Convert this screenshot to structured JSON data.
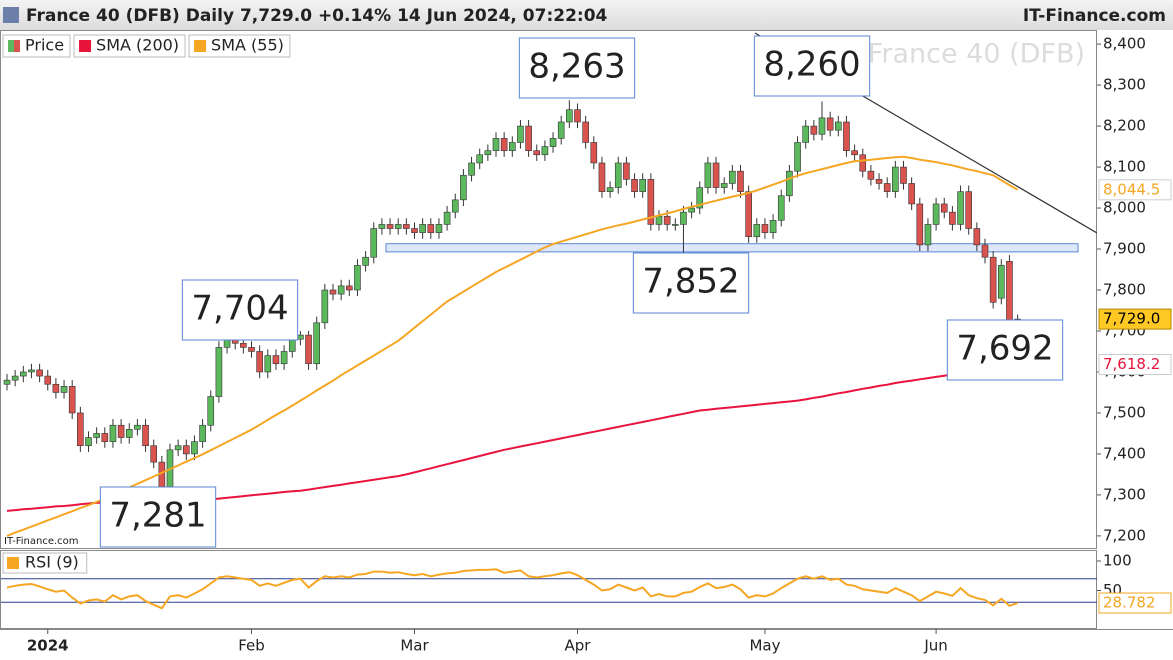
{
  "header": {
    "title": "France 40 (DFB) Daily 7,729.0 +0.14% 14 Jun 2024, 07:22:04",
    "brand": "IT-Finance.com"
  },
  "chart_data": [
    {
      "type": "candlestick",
      "watermark": "France 40 (DFB)",
      "source": "IT-Finance.com",
      "categories": [
        null,
        null,
        null,
        null,
        null,
        "2024",
        null,
        null,
        null,
        null,
        null,
        null,
        null,
        null,
        null,
        null,
        null,
        null,
        null,
        null,
        null,
        null,
        null,
        null,
        null,
        null,
        null,
        null,
        null,
        null,
        "Feb",
        null,
        null,
        null,
        null,
        null,
        null,
        null,
        null,
        null,
        null,
        null,
        null,
        null,
        null,
        null,
        null,
        null,
        null,
        null,
        "Mar",
        null,
        null,
        null,
        null,
        null,
        null,
        null,
        null,
        null,
        null,
        null,
        null,
        null,
        null,
        null,
        null,
        null,
        null,
        null,
        "Apr",
        null,
        null,
        null,
        null,
        null,
        null,
        null,
        null,
        null,
        null,
        null,
        null,
        null,
        null,
        null,
        null,
        null,
        null,
        null,
        null,
        null,
        null,
        "May",
        null,
        null,
        null,
        null,
        null,
        null,
        null,
        null,
        null,
        null,
        null,
        null,
        null,
        null,
        null,
        null,
        null,
        null,
        null,
        null,
        "Jun",
        null,
        null,
        null,
        null,
        null,
        null,
        null,
        null,
        null,
        null
      ],
      "series": [
        {
          "name": "Price",
          "up_color": "#5cb85c",
          "down_color": "#d9534f",
          "end_label": "7,729.0",
          "open": [
            7570,
            7580,
            7590,
            7600,
            7605,
            7590,
            7570,
            7550,
            7565,
            7500,
            7420,
            7440,
            7450,
            7430,
            7470,
            7440,
            7460,
            7470,
            7420,
            7380,
            7320,
            7410,
            7420,
            7400,
            7430,
            7470,
            7540,
            7660,
            7680,
            7670,
            7660,
            7650,
            7600,
            7640,
            7620,
            7650,
            7680,
            7690,
            7620,
            7720,
            7800,
            7790,
            7810,
            7800,
            7860,
            7880,
            7950,
            7960,
            7950,
            7960,
            7950,
            7940,
            7960,
            7940,
            7960,
            7990,
            8020,
            8080,
            8110,
            8130,
            8140,
            8170,
            8140,
            8160,
            8200,
            8140,
            8130,
            8150,
            8170,
            8210,
            8240,
            8210,
            8160,
            8110,
            8040,
            8050,
            8110,
            8070,
            8040,
            8070,
            7960,
            7980,
            7960,
            7960,
            7990,
            8000,
            8050,
            8110,
            8050,
            8060,
            8090,
            8040,
            7930,
            7960,
            7940,
            7970,
            8030,
            8090,
            8160,
            8200,
            8180,
            8220,
            8190,
            8210,
            8140,
            8130,
            8090,
            8070,
            8060,
            8040,
            8100,
            8060,
            8010,
            7910,
            7960,
            8010,
            7990,
            7960,
            8040,
            7950,
            7910,
            7880,
            7780,
            7870,
            7710
          ],
          "high": [
            7595,
            7605,
            7615,
            7620,
            7620,
            7605,
            7585,
            7580,
            7580,
            7515,
            7455,
            7465,
            7465,
            7485,
            7485,
            7475,
            7485,
            7485,
            7435,
            7395,
            7425,
            7435,
            7435,
            7445,
            7485,
            7555,
            7675,
            7695,
            7704,
            7685,
            7675,
            7665,
            7655,
            7655,
            7665,
            7695,
            7700,
            7700,
            7735,
            7815,
            7815,
            7825,
            7825,
            7875,
            7895,
            7965,
            7975,
            7975,
            7975,
            7975,
            7965,
            7975,
            7975,
            7975,
            8005,
            8035,
            8095,
            8125,
            8145,
            8155,
            8185,
            8185,
            8175,
            8215,
            8215,
            8155,
            8165,
            8185,
            8225,
            8263,
            8255,
            8225,
            8175,
            8125,
            8065,
            8125,
            8125,
            8085,
            8085,
            8085,
            7995,
            7995,
            7975,
            8005,
            8015,
            8065,
            8125,
            8125,
            8075,
            8105,
            8105,
            8055,
            7975,
            7975,
            7985,
            8045,
            8105,
            8175,
            8215,
            8215,
            8260,
            8235,
            8225,
            8225,
            8155,
            8145,
            8105,
            8085,
            8075,
            8115,
            8115,
            8075,
            8025,
            7975,
            8025,
            8025,
            8005,
            8055,
            8055,
            7965,
            7925,
            7895,
            7875,
            7885,
            7740
          ],
          "low": [
            7555,
            7565,
            7575,
            7585,
            7575,
            7555,
            7535,
            7535,
            7485,
            7405,
            7405,
            7425,
            7415,
            7415,
            7425,
            7425,
            7445,
            7405,
            7365,
            7281,
            7305,
            7395,
            7385,
            7385,
            7415,
            7455,
            7525,
            7645,
            7655,
            7645,
            7635,
            7585,
            7585,
            7605,
            7605,
            7635,
            7665,
            7605,
            7605,
            7705,
            7775,
            7775,
            7785,
            7785,
            7845,
            7865,
            7935,
            7935,
            7935,
            7935,
            7925,
            7925,
            7925,
            7925,
            7945,
            7975,
            8005,
            8065,
            8095,
            8115,
            8125,
            8125,
            8125,
            8145,
            8125,
            8115,
            8115,
            8135,
            8155,
            8195,
            8195,
            8145,
            8095,
            8025,
            8025,
            8035,
            8055,
            8025,
            8025,
            7945,
            7945,
            7945,
            7945,
            7852,
            7975,
            7985,
            8035,
            8035,
            8035,
            8045,
            8025,
            7915,
            7915,
            7925,
            7925,
            7955,
            8015,
            8075,
            8145,
            8165,
            8165,
            8175,
            8175,
            8125,
            8115,
            8075,
            8055,
            8045,
            8025,
            8025,
            8045,
            7995,
            7895,
            7895,
            7945,
            7975,
            7945,
            7945,
            7935,
            7895,
            7865,
            7755,
            7765,
            7692,
            7700
          ],
          "close": [
            7580,
            7590,
            7600,
            7605,
            7590,
            7570,
            7550,
            7565,
            7500,
            7420,
            7440,
            7450,
            7430,
            7470,
            7440,
            7460,
            7470,
            7420,
            7380,
            7320,
            7410,
            7420,
            7400,
            7430,
            7470,
            7540,
            7660,
            7680,
            7670,
            7660,
            7650,
            7600,
            7640,
            7620,
            7650,
            7680,
            7690,
            7620,
            7720,
            7800,
            7790,
            7810,
            7800,
            7860,
            7880,
            7950,
            7960,
            7950,
            7960,
            7950,
            7940,
            7960,
            7940,
            7960,
            7990,
            8020,
            8080,
            8110,
            8130,
            8140,
            8170,
            8140,
            8160,
            8200,
            8140,
            8130,
            8150,
            8170,
            8210,
            8240,
            8210,
            8160,
            8110,
            8040,
            8050,
            8110,
            8070,
            8040,
            8070,
            7960,
            7980,
            7960,
            7960,
            7990,
            8000,
            8050,
            8110,
            8050,
            8060,
            8090,
            8040,
            7930,
            7960,
            7940,
            7970,
            8030,
            8090,
            8160,
            8200,
            8180,
            8220,
            8190,
            8210,
            8140,
            8130,
            8090,
            8070,
            8060,
            8040,
            8100,
            8060,
            8010,
            7910,
            7960,
            8010,
            7990,
            7960,
            8040,
            7950,
            7910,
            7880,
            7770,
            7860,
            7700,
            7729
          ]
        },
        {
          "name": "SMA (200)",
          "color": "#e8143c",
          "end_label": "7,618.2",
          "values": [
            7261,
            7263,
            7265,
            7266,
            7268,
            7270,
            7272,
            7273,
            7275,
            7277,
            7279,
            7281,
            7281,
            7281,
            7282,
            7282,
            7282,
            7283,
            7283,
            7284,
            7284,
            7285,
            7285,
            7286,
            7287,
            7289,
            7291,
            7293,
            7295,
            7297,
            7299,
            7301,
            7303,
            7305,
            7307,
            7309,
            7310,
            7313,
            7316,
            7319,
            7322,
            7325,
            7328,
            7331,
            7334,
            7337,
            7340,
            7343,
            7346,
            7350,
            7355,
            7360,
            7365,
            7370,
            7375,
            7380,
            7385,
            7390,
            7395,
            7400,
            7405,
            7410,
            7414,
            7418,
            7422,
            7426,
            7430,
            7434,
            7438,
            7442,
            7446,
            7450,
            7454,
            7458,
            7462,
            7466,
            7470,
            7474,
            7478,
            7482,
            7486,
            7490,
            7494,
            7498,
            7502,
            7506,
            7508,
            7510,
            7512,
            7514,
            7516,
            7518,
            7520,
            7522,
            7524,
            7526,
            7528,
            7530,
            7533,
            7537,
            7540,
            7544,
            7548,
            7551,
            7555,
            7559,
            7562,
            7566,
            7569,
            7573,
            7576,
            7579,
            7582,
            7585,
            7588,
            7591,
            7594,
            7597,
            7600,
            7603,
            7606,
            7609,
            7612,
            7615,
            7618.2
          ]
        },
        {
          "name": "SMA (55)",
          "color": "#f5a623",
          "end_label": "8,044.5",
          "values": [
            7200,
            7208,
            7215,
            7223,
            7230,
            7238,
            7245,
            7253,
            7260,
            7268,
            7275,
            7283,
            7291,
            7300,
            7309,
            7318,
            7327,
            7336,
            7345,
            7354,
            7363,
            7372,
            7381,
            7390,
            7399,
            7409,
            7419,
            7429,
            7439,
            7449,
            7459,
            7471,
            7483,
            7495,
            7506,
            7518,
            7530,
            7542,
            7555,
            7567,
            7579,
            7592,
            7604,
            7616,
            7628,
            7640,
            7652,
            7664,
            7676,
            7692,
            7708,
            7724,
            7740,
            7756,
            7772,
            7784,
            7796,
            7808,
            7820,
            7832,
            7844,
            7854,
            7864,
            7874,
            7884,
            7894,
            7904,
            7912,
            7918,
            7924,
            7930,
            7936,
            7942,
            7948,
            7953,
            7958,
            7962,
            7967,
            7972,
            7977,
            7982,
            7987,
            7992,
            7998,
            8003,
            8008,
            8013,
            8018,
            8023,
            8028,
            8032,
            8037,
            8043,
            8050,
            8057,
            8064,
            8072,
            8079,
            8085,
            8090,
            8095,
            8100,
            8105,
            8110,
            8114,
            8116,
            8118,
            8120,
            8122,
            8124,
            8125,
            8122,
            8118,
            8115,
            8112,
            8108,
            8104,
            8099,
            8094,
            8090,
            8085,
            8080,
            8068,
            8056,
            8044.5
          ]
        }
      ],
      "ylim": [
        7168,
        8432
      ],
      "yticks": [
        {
          "value": 7200,
          "label": "7,200"
        },
        {
          "value": 7300,
          "label": "7,300"
        },
        {
          "value": 7400,
          "label": "7,400"
        },
        {
          "value": 7500,
          "label": "7,500"
        },
        {
          "value": 7600,
          "label": "7,600"
        },
        {
          "value": 7700,
          "label": "7,700"
        },
        {
          "value": 7800,
          "label": "7,800"
        },
        {
          "value": 7900,
          "label": "7,900"
        },
        {
          "value": 8000,
          "label": "8,000"
        },
        {
          "value": 8100,
          "label": "8,100"
        },
        {
          "value": 8200,
          "label": "8,200"
        },
        {
          "value": 8300,
          "label": "8,300"
        },
        {
          "value": 8400,
          "label": "8,400"
        }
      ],
      "zone": [
        7893,
        7913
      ],
      "annotations": [
        "8,263",
        "8,260",
        "7,704",
        "7,852",
        "7,281",
        "7,692"
      ]
    },
    {
      "type": "line",
      "series": [
        {
          "name": "RSI (9)",
          "color": "#f5a623",
          "end_label": "28.782",
          "values": [
            55,
            58,
            60,
            61,
            57,
            52,
            48,
            50,
            38,
            28,
            33,
            35,
            31,
            42,
            35,
            40,
            42,
            32,
            26,
            20,
            40,
            42,
            38,
            45,
            52,
            62,
            72,
            74,
            72,
            70,
            68,
            58,
            62,
            58,
            63,
            68,
            70,
            55,
            66,
            74,
            72,
            74,
            72,
            77,
            78,
            82,
            82,
            80,
            81,
            78,
            76,
            78,
            74,
            77,
            79,
            80,
            83,
            84,
            85,
            85,
            86,
            80,
            82,
            84,
            74,
            72,
            74,
            76,
            79,
            81,
            76,
            68,
            60,
            50,
            52,
            60,
            55,
            50,
            55,
            40,
            44,
            40,
            40,
            46,
            48,
            56,
            62,
            54,
            56,
            60,
            52,
            38,
            42,
            40,
            45,
            54,
            62,
            70,
            74,
            70,
            74,
            68,
            70,
            60,
            58,
            52,
            50,
            48,
            46,
            54,
            48,
            42,
            32,
            40,
            48,
            45,
            41,
            54,
            42,
            37,
            34,
            25,
            36,
            24,
            28.782
          ]
        }
      ],
      "ylim": [
        0,
        100
      ],
      "yticks": [
        100,
        50
      ],
      "levels": [
        70,
        30
      ],
      "level_color": "#2a3f8f"
    }
  ]
}
